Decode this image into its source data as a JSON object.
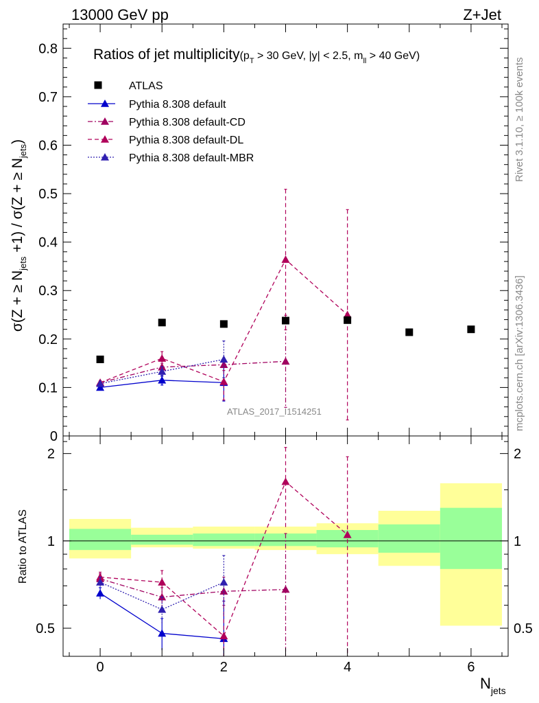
{
  "header": {
    "energy_label": "13000 GeV pp",
    "process_label": "Z+Jet"
  },
  "side_labels": {
    "rivet": "Rivet 3.1.10, ≥ 100k events",
    "mcplots": "mcplots.cern.ch [arXiv:1306.3436]"
  },
  "main_title": {
    "text": "Ratios of jet multiplicity",
    "cuts_prefix": "(p",
    "cuts_sub_T": "T",
    "cuts_mid": " > 30 GeV, |y| < 2.5, m",
    "cuts_sub_ll": "ll",
    "cuts_suffix": " > 40 GeV)"
  },
  "watermark": "ATLAS_2017_I1514251",
  "ylabel_main": {
    "p1": "σ(Z + ≥ N",
    "s1": "jets",
    "p2": " +1) / σ(Z + ≥ N",
    "s2": "jets",
    "p3": ")"
  },
  "ylabel_ratio": "Ratio to ATLAS",
  "xlabel": {
    "main": "N",
    "sub": "jets"
  },
  "colors": {
    "data": "#000000",
    "default": "#0000cc",
    "cd": "#a00060",
    "dl": "#b0005a",
    "mbr": "#3020b0",
    "band_yellow": "#ffff99",
    "band_green": "#99ff99"
  },
  "chart_data": {
    "type": "line",
    "x_tick_labels": [
      "0",
      "2",
      "4",
      "6"
    ],
    "main_y_ticks": [
      "0",
      "0.1",
      "0.2",
      "0.3",
      "0.4",
      "0.5",
      "0.6",
      "0.7",
      "0.8"
    ],
    "ratio_y_ticks": [
      "0.5",
      "1",
      "2"
    ],
    "xlim": [
      -0.6,
      6.6
    ],
    "main_ylim": [
      0,
      0.85
    ],
    "ratio_ylim": [
      0.4,
      2.3
    ],
    "ratio_log_scale": true,
    "legend_position": "top-left",
    "data": {
      "name": "ATLAS",
      "x": [
        0,
        1,
        2,
        3,
        4,
        5,
        6
      ],
      "y": [
        0.158,
        0.234,
        0.231,
        0.238,
        0.239,
        0.214,
        0.22
      ]
    },
    "bands": [
      {
        "x0": -0.5,
        "x1": 0.5,
        "yellow": [
          0.87,
          1.19
        ],
        "green": [
          0.93,
          1.1
        ]
      },
      {
        "x0": 0.5,
        "x1": 1.5,
        "yellow": [
          0.95,
          1.11
        ],
        "green": [
          0.97,
          1.05
        ]
      },
      {
        "x0": 1.5,
        "x1": 2.5,
        "yellow": [
          0.94,
          1.12
        ],
        "green": [
          0.96,
          1.06
        ]
      },
      {
        "x0": 2.5,
        "x1": 3.5,
        "yellow": [
          0.93,
          1.12
        ],
        "green": [
          0.96,
          1.06
        ]
      },
      {
        "x0": 3.5,
        "x1": 4.5,
        "yellow": [
          0.9,
          1.15
        ],
        "green": [
          0.95,
          1.09
        ]
      },
      {
        "x0": 4.5,
        "x1": 5.5,
        "yellow": [
          0.82,
          1.27
        ],
        "green": [
          0.91,
          1.14
        ]
      },
      {
        "x0": 5.5,
        "x1": 6.5,
        "yellow": [
          0.51,
          1.58
        ],
        "green": [
          0.8,
          1.3
        ]
      }
    ],
    "series": [
      {
        "name": "Pythia 8.308 default",
        "color_key": "default",
        "dash": "",
        "x": [
          0,
          1,
          2
        ],
        "y": [
          0.1,
          0.115,
          0.11
        ],
        "err": [
          0.005,
          0.01,
          0.038
        ],
        "ratio": [
          0.66,
          0.48,
          0.46
        ],
        "ratio_err": [
          0.03,
          0.06,
          0.16
        ]
      },
      {
        "name": "Pythia 8.308 default-CD",
        "color_key": "cd",
        "dash": "7,3,2,3",
        "x": [
          0,
          1,
          2,
          3
        ],
        "y": [
          0.11,
          0.142,
          0.147,
          0.154
        ],
        "err": [
          0.004,
          0.008,
          0.012,
          0.095
        ],
        "ratio": [
          0.74,
          0.64,
          0.67,
          0.68
        ],
        "ratio_err": [
          0.03,
          0.05,
          0.08,
          0.38
        ]
      },
      {
        "name": "Pythia 8.308 default-DL",
        "color_key": "dl",
        "dash": "6,4",
        "x": [
          0,
          1,
          2,
          3,
          4
        ],
        "y": [
          0.11,
          0.16,
          0.112,
          0.364,
          0.25
        ],
        "err": [
          0.004,
          0.014,
          0.038,
          0.145,
          0.217
        ],
        "ratio": [
          0.75,
          0.72,
          0.47,
          1.6,
          1.05
        ],
        "ratio_err": [
          0.03,
          0.07,
          0.13,
          0.5,
          0.9
        ]
      },
      {
        "name": "Pythia 8.308 default-MBR",
        "color_key": "mbr",
        "dash": "2,2",
        "x": [
          0,
          1,
          2
        ],
        "y": [
          0.108,
          0.133,
          0.158
        ],
        "err": [
          0.004,
          0.01,
          0.038
        ],
        "ratio": [
          0.72,
          0.58,
          0.72
        ],
        "ratio_err": [
          0.03,
          0.06,
          0.17
        ]
      }
    ]
  }
}
